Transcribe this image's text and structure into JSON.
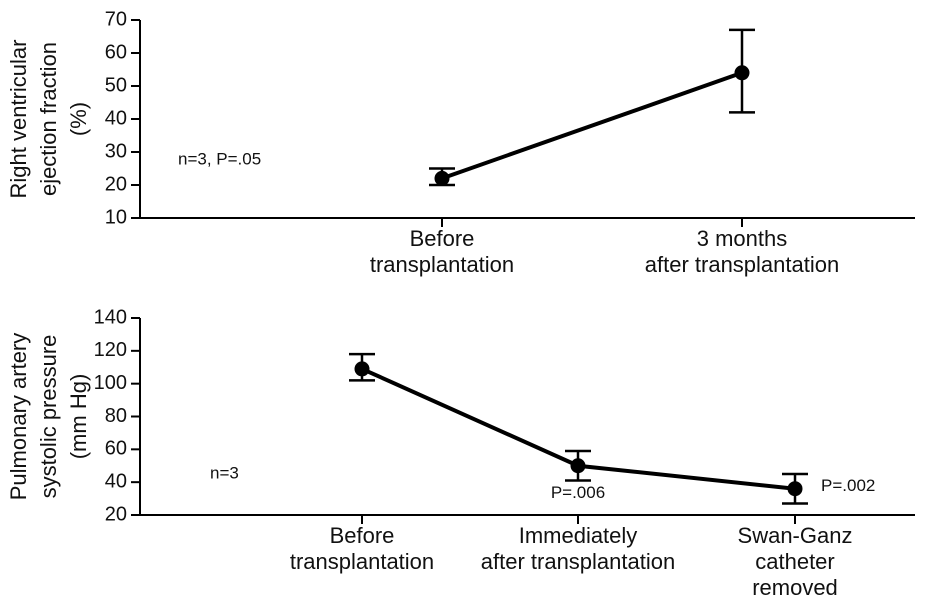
{
  "chart_data": [
    {
      "type": "line",
      "color": "#000000",
      "y_label": [
        "Right ventricular",
        "ejection fraction",
        "(%)"
      ],
      "categories": [
        [
          "Before",
          "transplantation"
        ],
        [
          "3 months",
          "after transplantation"
        ]
      ],
      "values": [
        22,
        54
      ],
      "ci_low": [
        20,
        42
      ],
      "ci_high": [
        25,
        67
      ],
      "ylim": [
        10,
        70
      ],
      "yticks": [
        10,
        20,
        30,
        40,
        50,
        60,
        70
      ],
      "annotation": "n=3, P=.05"
    },
    {
      "type": "line",
      "color": "#000000",
      "y_label": [
        "Pulmonary artery",
        "systolic pressure",
        "(mm Hg)"
      ],
      "categories": [
        [
          "Before",
          "transplantation"
        ],
        [
          "Immediately",
          "after transplantation"
        ],
        [
          "Swan-Ganz",
          "catheter",
          "removed"
        ]
      ],
      "values": [
        109,
        50,
        36
      ],
      "ci_low": [
        102,
        41,
        27
      ],
      "ci_high": [
        118,
        59,
        45
      ],
      "point_notes": [
        null,
        "P=.006",
        "P=.002"
      ],
      "ylim": [
        20,
        140
      ],
      "yticks": [
        20,
        40,
        60,
        80,
        100,
        120,
        140
      ],
      "annotation": "n=3"
    }
  ]
}
